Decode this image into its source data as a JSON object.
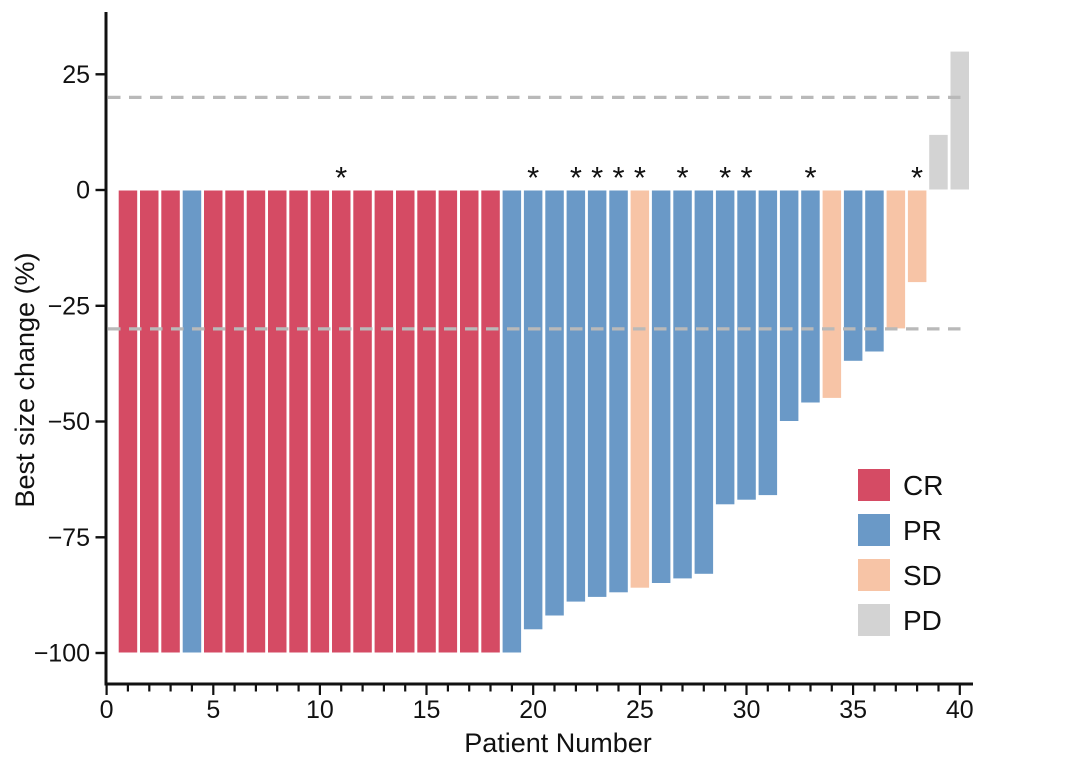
{
  "chart_data": {
    "type": "bar",
    "title": "",
    "xlabel": "Patient Number",
    "ylabel": "Best size change (%)",
    "grid": false,
    "background": "#ffffff",
    "legend_position": "inside-right",
    "xlim": [
      0,
      40.6
    ],
    "ylim": [
      -106,
      38
    ],
    "x_major_ticks": [
      {
        "value": 0,
        "label": "0"
      },
      {
        "value": 5,
        "label": "5"
      },
      {
        "value": 10,
        "label": "10"
      },
      {
        "value": 15,
        "label": "15"
      },
      {
        "value": 20,
        "label": "20"
      },
      {
        "value": 25,
        "label": "25"
      },
      {
        "value": 30,
        "label": "30"
      },
      {
        "value": 35,
        "label": "35"
      },
      {
        "value": 40,
        "label": "40"
      }
    ],
    "x_minor_tick_step": 1,
    "y_ticks": [
      {
        "value": 25,
        "label": "25"
      },
      {
        "value": 0,
        "label": "0"
      },
      {
        "value": -25,
        "label": "−25"
      },
      {
        "value": -50,
        "label": "−50"
      },
      {
        "value": -75,
        "label": "−75"
      },
      {
        "value": -100,
        "label": "−100"
      }
    ],
    "reference_lines": [
      {
        "y": 20,
        "style": "dashed"
      },
      {
        "y": -30,
        "style": "dashed"
      }
    ],
    "annotation_symbol": "*",
    "colors": {
      "CR": "#D54B64",
      "PR": "#6A99C7",
      "SD": "#F7C4A6",
      "PD": "#D3D3D3",
      "reference_line": "#B9B9B9",
      "axis": "#111111"
    },
    "legend": [
      {
        "code": "CR"
      },
      {
        "code": "PR"
      },
      {
        "code": "SD"
      },
      {
        "code": "PD"
      }
    ],
    "series": [
      {
        "patient": 1,
        "change": -100,
        "response": "CR",
        "starred": false
      },
      {
        "patient": 2,
        "change": -100,
        "response": "CR",
        "starred": false
      },
      {
        "patient": 3,
        "change": -100,
        "response": "CR",
        "starred": false
      },
      {
        "patient": 4,
        "change": -100,
        "response": "PR",
        "starred": false
      },
      {
        "patient": 5,
        "change": -100,
        "response": "CR",
        "starred": false
      },
      {
        "patient": 6,
        "change": -100,
        "response": "CR",
        "starred": false
      },
      {
        "patient": 7,
        "change": -100,
        "response": "CR",
        "starred": false
      },
      {
        "patient": 8,
        "change": -100,
        "response": "CR",
        "starred": false
      },
      {
        "patient": 9,
        "change": -100,
        "response": "CR",
        "starred": false
      },
      {
        "patient": 10,
        "change": -100,
        "response": "CR",
        "starred": false
      },
      {
        "patient": 11,
        "change": -100,
        "response": "CR",
        "starred": true
      },
      {
        "patient": 12,
        "change": -100,
        "response": "CR",
        "starred": false
      },
      {
        "patient": 13,
        "change": -100,
        "response": "CR",
        "starred": false
      },
      {
        "patient": 14,
        "change": -100,
        "response": "CR",
        "starred": false
      },
      {
        "patient": 15,
        "change": -100,
        "response": "CR",
        "starred": false
      },
      {
        "patient": 16,
        "change": -100,
        "response": "CR",
        "starred": false
      },
      {
        "patient": 17,
        "change": -100,
        "response": "CR",
        "starred": false
      },
      {
        "patient": 18,
        "change": -100,
        "response": "CR",
        "starred": false
      },
      {
        "patient": 19,
        "change": -100,
        "response": "PR",
        "starred": false
      },
      {
        "patient": 20,
        "change": -95,
        "response": "PR",
        "starred": true
      },
      {
        "patient": 21,
        "change": -92,
        "response": "PR",
        "starred": false
      },
      {
        "patient": 22,
        "change": -89,
        "response": "PR",
        "starred": true
      },
      {
        "patient": 23,
        "change": -88,
        "response": "PR",
        "starred": true
      },
      {
        "patient": 24,
        "change": -87,
        "response": "PR",
        "starred": true
      },
      {
        "patient": 25,
        "change": -86,
        "response": "SD",
        "starred": true
      },
      {
        "patient": 26,
        "change": -85,
        "response": "PR",
        "starred": false
      },
      {
        "patient": 27,
        "change": -84,
        "response": "PR",
        "starred": true
      },
      {
        "patient": 28,
        "change": -83,
        "response": "PR",
        "starred": false
      },
      {
        "patient": 29,
        "change": -68,
        "response": "PR",
        "starred": true
      },
      {
        "patient": 30,
        "change": -67,
        "response": "PR",
        "starred": true
      },
      {
        "patient": 31,
        "change": -66,
        "response": "PR",
        "starred": false
      },
      {
        "patient": 32,
        "change": -50,
        "response": "PR",
        "starred": false
      },
      {
        "patient": 33,
        "change": -46,
        "response": "PR",
        "starred": true
      },
      {
        "patient": 34,
        "change": -45,
        "response": "SD",
        "starred": false
      },
      {
        "patient": 35,
        "change": -37,
        "response": "PR",
        "starred": false
      },
      {
        "patient": 36,
        "change": -35,
        "response": "PR",
        "starred": false
      },
      {
        "patient": 37,
        "change": -30,
        "response": "SD",
        "starred": false
      },
      {
        "patient": 38,
        "change": -20,
        "response": "SD",
        "starred": true
      },
      {
        "patient": 39,
        "change": 12,
        "response": "PD",
        "starred": false
      },
      {
        "patient": 40,
        "change": 30,
        "response": "PD",
        "starred": false
      }
    ]
  }
}
